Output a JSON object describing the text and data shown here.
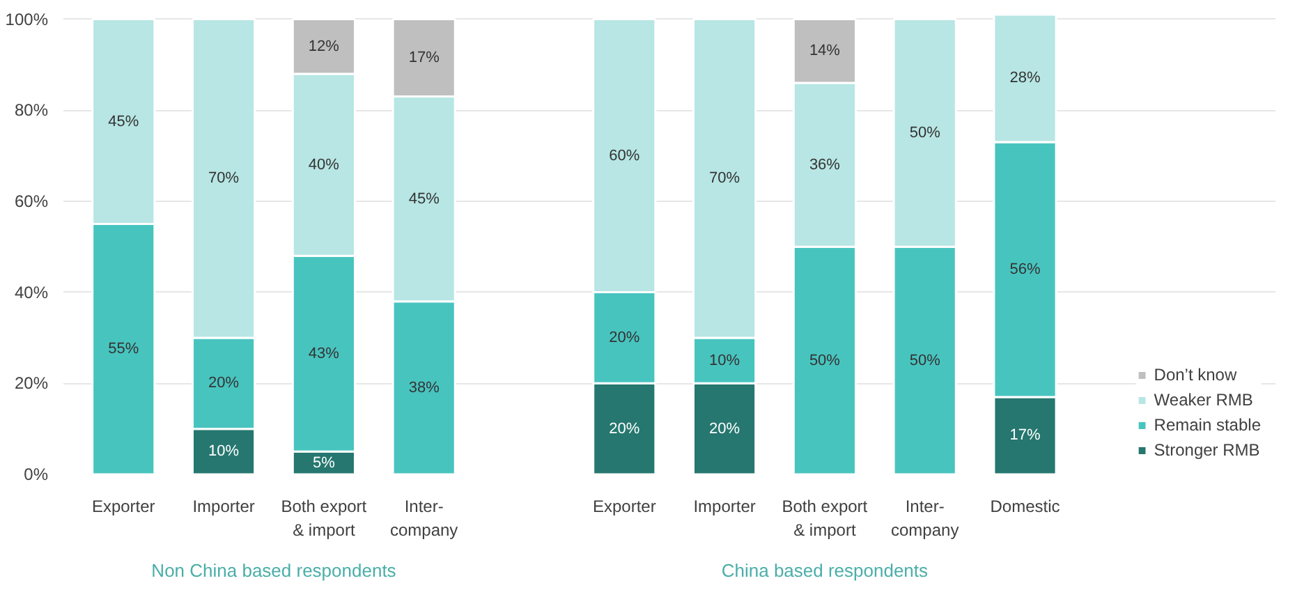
{
  "chart_data": {
    "type": "bar",
    "stacked": true,
    "categories": [
      "Exporter",
      "Importer",
      "Both export\n& import",
      "Inter-\ncompany",
      null,
      "Exporter",
      "Importer",
      "Both export\n& import",
      "Inter-\ncompany",
      "Domestic"
    ],
    "series": [
      {
        "name": "Stronger RMB",
        "color": "#25776f",
        "values": [
          null,
          10,
          5,
          null,
          null,
          20,
          20,
          null,
          null,
          17
        ],
        "value_labels": [
          null,
          "10%",
          "5%",
          null,
          null,
          "20%",
          "20%",
          null,
          null,
          "17%"
        ]
      },
      {
        "name": "Remain stable",
        "color": "#48c4bf",
        "values": [
          55,
          20,
          43,
          38,
          null,
          20,
          10,
          50,
          50,
          56
        ],
        "value_labels": [
          "55%",
          "20%",
          "43%",
          "38%",
          null,
          "20%",
          "10%",
          "50%",
          "50%",
          "56%"
        ]
      },
      {
        "name": "Weaker RMB",
        "color": "#b7e6e4",
        "values": [
          45,
          70,
          40,
          45,
          null,
          60,
          70,
          36,
          50,
          28
        ],
        "value_labels": [
          "45%",
          "70%",
          "40%",
          "45%",
          null,
          "60%",
          "70%",
          "36%",
          "50%",
          "28%"
        ]
      },
      {
        "name": "Don’t know",
        "color": "#bfbfbf",
        "values": [
          null,
          null,
          12,
          17,
          null,
          null,
          null,
          14,
          null,
          null
        ],
        "value_labels": [
          null,
          null,
          "12%",
          "17%",
          null,
          null,
          null,
          "14%",
          null,
          null
        ]
      }
    ],
    "ylim": [
      0,
      101
    ],
    "yticks": [
      {
        "value": 0,
        "label": "0%"
      },
      {
        "value": 20,
        "label": "20%"
      },
      {
        "value": 40,
        "label": "40%"
      },
      {
        "value": 60,
        "label": "60%"
      },
      {
        "value": 80,
        "label": "80%"
      },
      {
        "value": 100,
        "label": "100%"
      }
    ],
    "grid": "y",
    "legend": "right",
    "annotations": [
      "Non China based respondents",
      "China based respondents"
    ]
  }
}
